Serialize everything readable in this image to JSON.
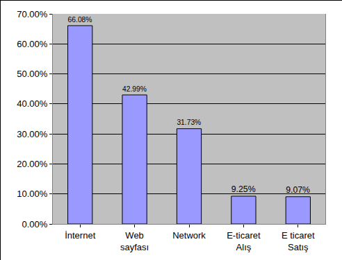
{
  "chart_data": {
    "type": "bar",
    "categories": [
      "İnternet",
      "Web sayfası",
      "Network",
      "E-ticaret Alış",
      "E ticaret Satış"
    ],
    "values": [
      66.08,
      42.99,
      31.73,
      9.25,
      9.07
    ],
    "value_labels": [
      "66.08%",
      "42.99%",
      "31.73%",
      "9.25%",
      "9.07%"
    ],
    "data_labels": true,
    "color": "#9999ff",
    "ylim": [
      0,
      70
    ],
    "yticks": [
      {
        "value": 0,
        "label": "0.00%"
      },
      {
        "value": 10,
        "label": "10.00%"
      },
      {
        "value": 20,
        "label": "20.00%"
      },
      {
        "value": 30,
        "label": "30.00%"
      },
      {
        "value": 40,
        "label": "40.00%"
      },
      {
        "value": 50,
        "label": "50.00%"
      },
      {
        "value": 60,
        "label": "60.00%"
      },
      {
        "value": 70,
        "label": "70.00%"
      }
    ],
    "grid": true
  }
}
